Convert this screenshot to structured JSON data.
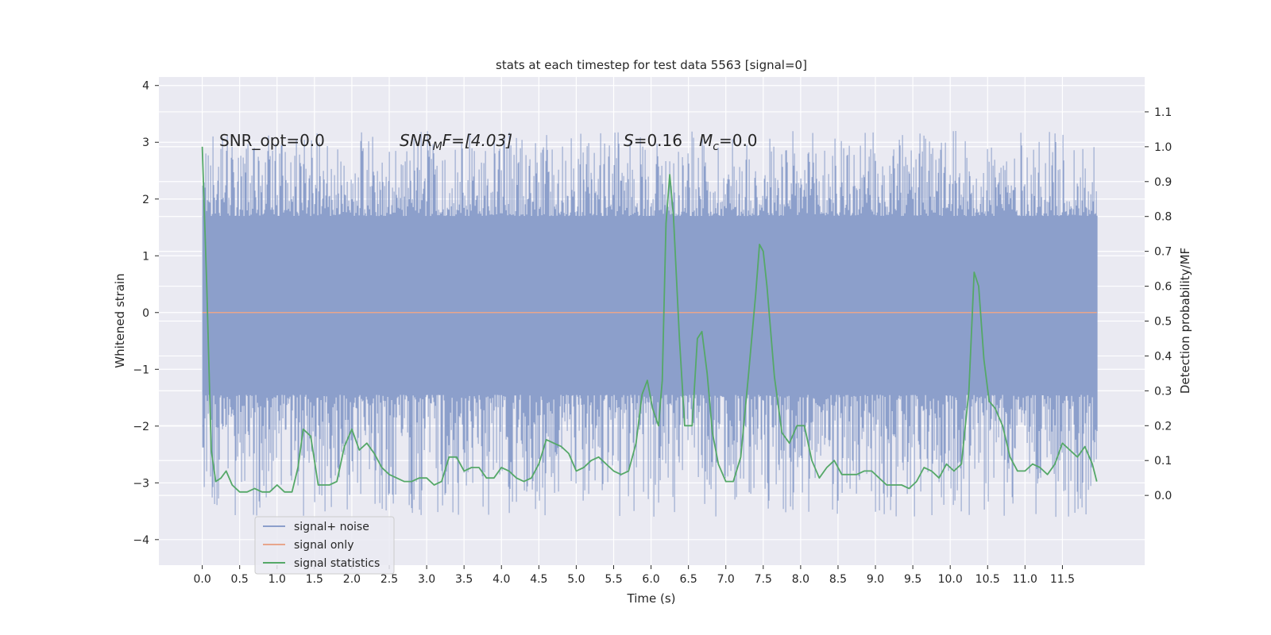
{
  "chart_data": {
    "type": "line",
    "title": "stats at each timestep for test data 5563 [signal=0]",
    "xlabel": "Time (s)",
    "ylabel_left": "Whitened strain",
    "ylabel_right": "Detection probability/MF",
    "xlim": [
      -0.58,
      12.6
    ],
    "ylim_left": [
      -4.45,
      4.15
    ],
    "ylim_right": [
      -0.2,
      1.2
    ],
    "x_ticks": [
      0.0,
      0.5,
      1.0,
      1.5,
      2.0,
      2.5,
      3.0,
      3.5,
      4.0,
      4.5,
      5.0,
      5.5,
      6.0,
      6.5,
      7.0,
      7.5,
      8.0,
      8.5,
      9.0,
      9.5,
      10.0,
      10.5,
      11.0,
      11.5
    ],
    "x_tick_labels": [
      "0.0",
      "0.5",
      "1.0",
      "1.5",
      "2.0",
      "2.5",
      "3.0",
      "3.5",
      "4.0",
      "4.5",
      "5.0",
      "5.5",
      "6.0",
      "6.5",
      "7.0",
      "7.5",
      "8.0",
      "8.5",
      "9.0",
      "9.5",
      "10.0",
      "10.5",
      "11.0",
      "11.5"
    ],
    "y_left_ticks": [
      -4,
      -3,
      -2,
      -1,
      0,
      1,
      2,
      3,
      4
    ],
    "y_left_tick_labels": [
      "−4",
      "−3",
      "−2",
      "−1",
      "0",
      "1",
      "2",
      "3",
      "4"
    ],
    "y_right_ticks": [
      0.0,
      0.1,
      0.2,
      0.3,
      0.4,
      0.5,
      0.6,
      0.7,
      0.8,
      0.9,
      1.0,
      1.1
    ],
    "y_right_tick_labels": [
      "0.0",
      "0.1",
      "0.2",
      "0.3",
      "0.4",
      "0.5",
      "0.6",
      "0.7",
      "0.8",
      "0.9",
      "1.0",
      "1.1"
    ],
    "grid": true,
    "annotations": {
      "snr_opt": "SNR_opt=0.0",
      "snr_mf_main": "SNR",
      "snr_mf_sub": "M",
      "snr_mf_rest": "F=[4.03]",
      "s_main": "S",
      "s_rest": "=0.16",
      "mc_main": "M",
      "mc_sub": "c",
      "mc_rest": "=0.0"
    },
    "legend": {
      "position": "lower-left",
      "entries": [
        "signal+ noise",
        "signal only",
        "signal statistics"
      ]
    },
    "colors": {
      "noise": "#8c9fcb",
      "signal": "#e8a68c",
      "stats": "#55a868",
      "background": "#eaeaf2",
      "grid": "#ffffff"
    },
    "series": [
      {
        "name": "signal+ noise",
        "t_start": 0.0,
        "t_end": 11.96,
        "core_envelope": [
          -1.45,
          1.7
        ],
        "peak_envelope": [
          -3.0,
          2.6
        ]
      },
      {
        "name": "signal only",
        "t_start": 0.0,
        "t_end": 11.96,
        "value": 0.0
      },
      {
        "name": "signal statistics",
        "x": [
          0.0,
          0.06,
          0.12,
          0.18,
          0.25,
          0.32,
          0.4,
          0.5,
          0.6,
          0.7,
          0.8,
          0.9,
          1.0,
          1.1,
          1.2,
          1.28,
          1.35,
          1.45,
          1.55,
          1.7,
          1.8,
          1.9,
          2.0,
          2.1,
          2.2,
          2.3,
          2.4,
          2.5,
          2.6,
          2.7,
          2.8,
          2.9,
          3.0,
          3.1,
          3.2,
          3.3,
          3.4,
          3.5,
          3.6,
          3.7,
          3.8,
          3.9,
          4.0,
          4.1,
          4.2,
          4.3,
          4.4,
          4.5,
          4.6,
          4.7,
          4.8,
          4.9,
          5.0,
          5.1,
          5.2,
          5.3,
          5.4,
          5.5,
          5.6,
          5.7,
          5.8,
          5.88,
          5.95,
          6.02,
          6.1,
          6.15,
          6.2,
          6.25,
          6.3,
          6.38,
          6.45,
          6.55,
          6.62,
          6.68,
          6.75,
          6.82,
          6.9,
          7.0,
          7.1,
          7.2,
          7.3,
          7.4,
          7.45,
          7.5,
          7.55,
          7.65,
          7.75,
          7.85,
          7.95,
          8.05,
          8.15,
          8.25,
          8.35,
          8.45,
          8.55,
          8.65,
          8.75,
          8.85,
          8.95,
          9.05,
          9.15,
          9.25,
          9.35,
          9.45,
          9.55,
          9.65,
          9.75,
          9.85,
          9.95,
          10.05,
          10.15,
          10.25,
          10.32,
          10.38,
          10.45,
          10.52,
          10.6,
          10.7,
          10.8,
          10.9,
          11.0,
          11.1,
          11.2,
          11.3,
          11.4,
          11.5,
          11.6,
          11.7,
          11.8,
          11.9,
          11.96
        ],
        "values": [
          1.0,
          0.6,
          0.13,
          0.04,
          0.05,
          0.07,
          0.03,
          0.01,
          0.01,
          0.02,
          0.01,
          0.01,
          0.03,
          0.01,
          0.01,
          0.08,
          0.19,
          0.17,
          0.03,
          0.03,
          0.04,
          0.14,
          0.19,
          0.13,
          0.15,
          0.12,
          0.08,
          0.06,
          0.05,
          0.04,
          0.04,
          0.05,
          0.05,
          0.03,
          0.04,
          0.11,
          0.11,
          0.07,
          0.08,
          0.08,
          0.05,
          0.05,
          0.08,
          0.07,
          0.05,
          0.04,
          0.05,
          0.09,
          0.16,
          0.15,
          0.14,
          0.12,
          0.07,
          0.08,
          0.1,
          0.11,
          0.09,
          0.07,
          0.06,
          0.07,
          0.15,
          0.29,
          0.33,
          0.25,
          0.2,
          0.33,
          0.78,
          0.92,
          0.8,
          0.45,
          0.2,
          0.2,
          0.45,
          0.47,
          0.35,
          0.18,
          0.09,
          0.04,
          0.04,
          0.11,
          0.34,
          0.58,
          0.72,
          0.7,
          0.6,
          0.34,
          0.18,
          0.15,
          0.2,
          0.2,
          0.1,
          0.05,
          0.08,
          0.1,
          0.06,
          0.06,
          0.06,
          0.07,
          0.07,
          0.05,
          0.03,
          0.03,
          0.03,
          0.02,
          0.04,
          0.08,
          0.07,
          0.05,
          0.09,
          0.07,
          0.09,
          0.3,
          0.64,
          0.6,
          0.39,
          0.27,
          0.25,
          0.2,
          0.11,
          0.07,
          0.07,
          0.09,
          0.08,
          0.06,
          0.09,
          0.15,
          0.13,
          0.11,
          0.14,
          0.09,
          0.04
        ]
      }
    ]
  }
}
